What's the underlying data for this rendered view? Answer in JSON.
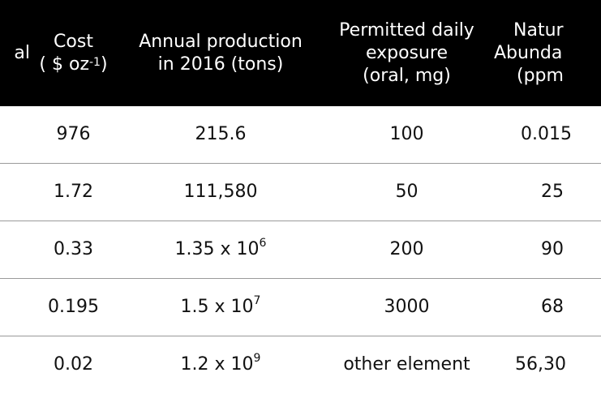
{
  "table": {
    "headers": [
      {
        "lines": [
          "al"
        ]
      },
      {
        "lines": [
          "Cost",
          "( $ oz"
        ],
        "sup_text": "-1",
        "after_sup": ")"
      },
      {
        "lines": [
          "Annual production",
          "in 2016 (tons)"
        ]
      },
      {
        "lines": [
          "Permitted daily",
          "exposure",
          "(oral, mg)"
        ]
      },
      {
        "lines": [
          "Natur",
          "Abunda",
          "(ppm"
        ]
      }
    ],
    "rows": [
      {
        "cost": "976",
        "production": "215.6",
        "production_exp": "",
        "pde": "100",
        "abundance": "0.015"
      },
      {
        "cost": "1.72",
        "production": "111,580",
        "production_exp": "",
        "pde": "50",
        "abundance": "25"
      },
      {
        "cost": "0.33",
        "production": "1.35 x 10",
        "production_exp": "6",
        "pde": "200",
        "abundance": "90"
      },
      {
        "cost": "0.195",
        "production": "1.5 x 10",
        "production_exp": "7",
        "pde": "3000",
        "abundance": "68"
      },
      {
        "cost": "0.02",
        "production": "1.2 x 10",
        "production_exp": "9",
        "pde": "other element",
        "abundance": "56,30"
      }
    ]
  }
}
